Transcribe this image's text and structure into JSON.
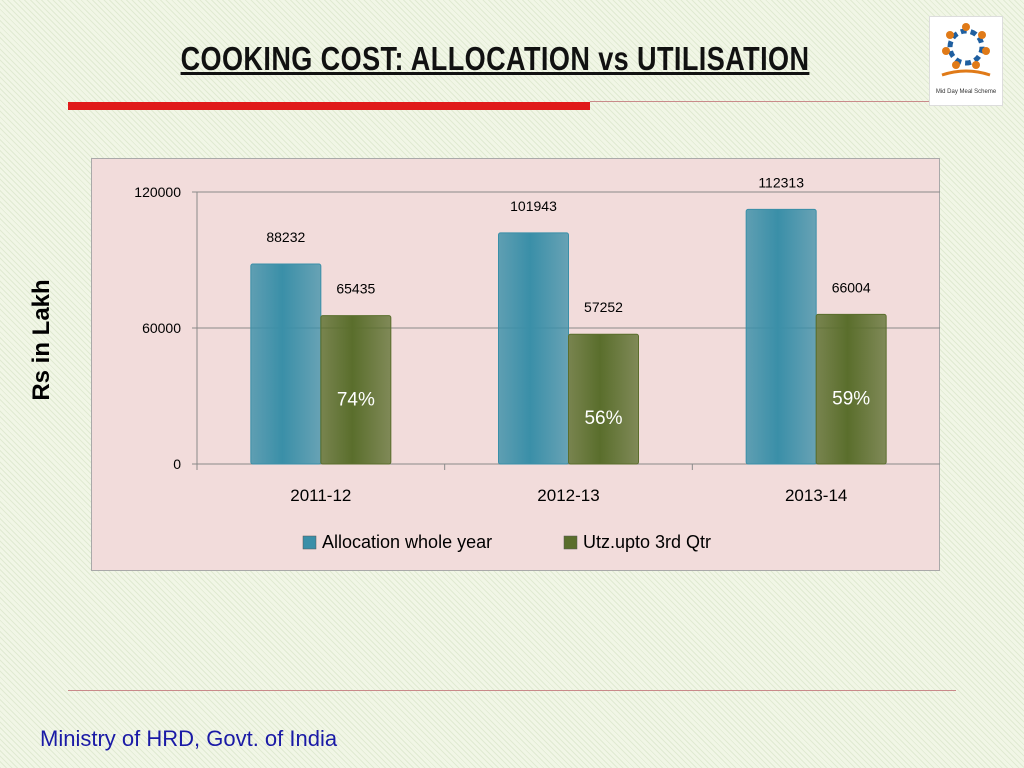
{
  "slide": {
    "title": "COOKING COST: ALLOCATION vs UTILISATION",
    "y_axis_title": "Rs in Lakh",
    "footer": "Ministry of HRD, Govt. of India",
    "logo_caption": "Mid Day Meal Scheme"
  },
  "colors": {
    "accent_rule": "#e01a1a",
    "allocation": "#3a8fa8",
    "utilisation": "#5a6e2c",
    "footer_text": "#1a1aa6"
  },
  "chart_data": {
    "type": "bar",
    "categories": [
      "2011-12",
      "2012-13",
      "2013-14"
    ],
    "series": [
      {
        "name": "Allocation whole year",
        "values": [
          88232,
          101943,
          112313
        ]
      },
      {
        "name": "Utz.upto 3rd Qtr",
        "values": [
          65435,
          57252,
          66004
        ]
      }
    ],
    "percent_labels": [
      "74%",
      "56%",
      "59%"
    ],
    "ylim": [
      0,
      120000
    ],
    "yticks": [
      0,
      60000,
      120000
    ],
    "grid": true,
    "legend_position": "bottom"
  }
}
